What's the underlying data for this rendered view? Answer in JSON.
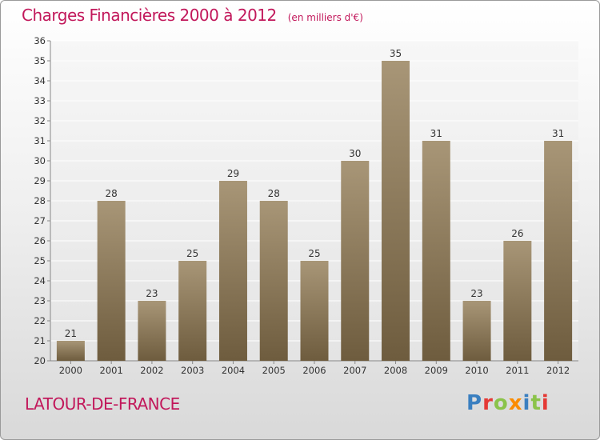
{
  "header": {
    "title": "Charges Financières 2000 à 2012",
    "subtitle": "(en milliers d'€)"
  },
  "footer": {
    "commune": "LATOUR-DE-FRANCE",
    "brand": "Proxiti",
    "brand_colors": [
      "#3a7fc0",
      "#e53935",
      "#8bc34a",
      "#fb8c00",
      "#3a7fc0",
      "#8bc34a",
      "#e53935"
    ]
  },
  "chart_data": {
    "type": "bar",
    "title": "Charges Financières 2000 à 2012",
    "subtitle": "(en milliers d'€)",
    "xlabel": "",
    "ylabel": "",
    "categories": [
      "2000",
      "2001",
      "2002",
      "2003",
      "2004",
      "2005",
      "2006",
      "2007",
      "2008",
      "2009",
      "2010",
      "2011",
      "2012"
    ],
    "values": [
      21,
      28,
      23,
      25,
      29,
      28,
      25,
      30,
      35,
      31,
      23,
      26,
      31
    ],
    "ylim": [
      20,
      36
    ],
    "yticks": [
      "20",
      "21",
      "22",
      "23",
      "24",
      "25",
      "26",
      "27",
      "28",
      "29",
      "30",
      "31",
      "32",
      "33",
      "34",
      "35",
      "36"
    ],
    "grid": true,
    "bar_color_top": "#a89677",
    "bar_color_bottom": "#6e5c3e"
  }
}
